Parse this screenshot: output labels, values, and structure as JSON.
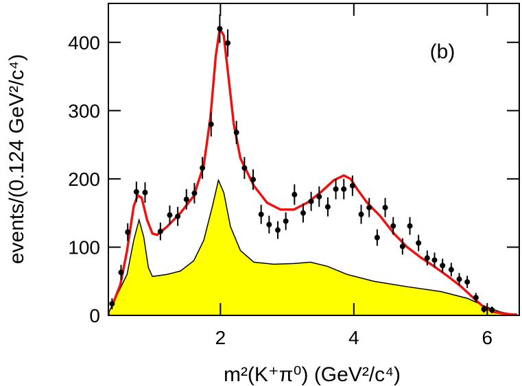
{
  "chart_data": {
    "type": "scatter",
    "xlabel": "m²(K⁺π⁰) (GeV²/c⁴)",
    "ylabel": "events/(0.124 GeV²/c⁴)",
    "annotation": "(b)",
    "xlim": [
      0.32,
      6.48
    ],
    "xticks": [
      2,
      4,
      6
    ],
    "ylim": [
      0,
      457
    ],
    "yticks": [
      0,
      100,
      200,
      300,
      400
    ],
    "series": [
      {
        "type": "area",
        "color": "#ffff00",
        "x": [
          0.33,
          0.45,
          0.6,
          0.7,
          0.78,
          0.85,
          0.92,
          0.98,
          1.2,
          1.4,
          1.6,
          1.75,
          1.88,
          1.97,
          2.05,
          2.15,
          2.3,
          2.5,
          2.8,
          3.1,
          3.35,
          3.6,
          3.9,
          4.3,
          4.8,
          5.3,
          5.7,
          6.0,
          6.2,
          6.4
        ],
        "values": [
          5,
          30,
          60,
          110,
          140,
          115,
          70,
          57,
          60,
          65,
          80,
          110,
          160,
          198,
          180,
          130,
          95,
          78,
          75,
          76,
          78,
          72,
          60,
          50,
          42,
          35,
          25,
          12,
          5,
          1
        ]
      },
      {
        "type": "line",
        "color": "#ee1111",
        "x": [
          0.38,
          0.5,
          0.6,
          0.7,
          0.76,
          0.82,
          0.9,
          0.98,
          1.05,
          1.2,
          1.4,
          1.6,
          1.75,
          1.85,
          1.93,
          1.99,
          2.05,
          2.12,
          2.2,
          2.3,
          2.5,
          2.7,
          2.9,
          3.1,
          3.3,
          3.5,
          3.7,
          3.85,
          3.95,
          4.05,
          4.2,
          4.4,
          4.6,
          4.8,
          5.0,
          5.2,
          5.4,
          5.6,
          5.8,
          5.95,
          6.1,
          6.3,
          6.45
        ],
        "values": [
          15,
          45,
          95,
          160,
          176,
          172,
          140,
          120,
          118,
          130,
          150,
          175,
          220,
          290,
          380,
          420,
          410,
          350,
          280,
          230,
          190,
          165,
          155,
          155,
          165,
          180,
          198,
          205,
          200,
          185,
          165,
          145,
          120,
          100,
          85,
          72,
          58,
          43,
          25,
          12,
          5,
          2,
          1
        ]
      },
      {
        "type": "scatter",
        "color": "#000000",
        "x": [
          0.375,
          0.51,
          0.61,
          0.74,
          0.87,
          1.1,
          1.24,
          1.36,
          1.49,
          1.61,
          1.73,
          1.86,
          1.99,
          2.11,
          2.24,
          2.36,
          2.49,
          2.61,
          2.73,
          2.86,
          2.98,
          3.11,
          3.24,
          3.36,
          3.48,
          3.61,
          3.73,
          3.85,
          3.98,
          4.11,
          4.23,
          4.35,
          4.47,
          4.59,
          4.73,
          4.84,
          4.97,
          5.1,
          5.21,
          5.33,
          5.46,
          5.58,
          5.7,
          5.83,
          5.95,
          6.07
        ],
        "values": [
          17,
          63,
          122,
          181,
          180,
          123,
          147,
          145,
          170,
          179,
          216,
          280,
          420,
          399,
          268,
          216,
          199,
          148,
          133,
          125,
          138,
          177,
          150,
          167,
          174,
          159,
          185,
          185,
          190,
          148,
          158,
          114,
          158,
          131,
          101,
          131,
          106,
          84,
          81,
          73,
          67,
          53,
          49,
          26,
          9,
          8
        ],
        "errors": [
          8,
          11,
          13,
          15,
          15,
          13,
          14,
          14,
          15,
          15,
          16,
          18,
          21,
          20,
          17,
          16,
          15,
          14,
          13,
          13,
          13,
          15,
          14,
          14,
          15,
          14,
          15,
          15,
          15,
          14,
          14,
          12,
          14,
          13,
          12,
          13,
          12,
          11,
          11,
          10,
          10,
          9,
          9,
          7,
          5,
          5
        ]
      }
    ]
  }
}
